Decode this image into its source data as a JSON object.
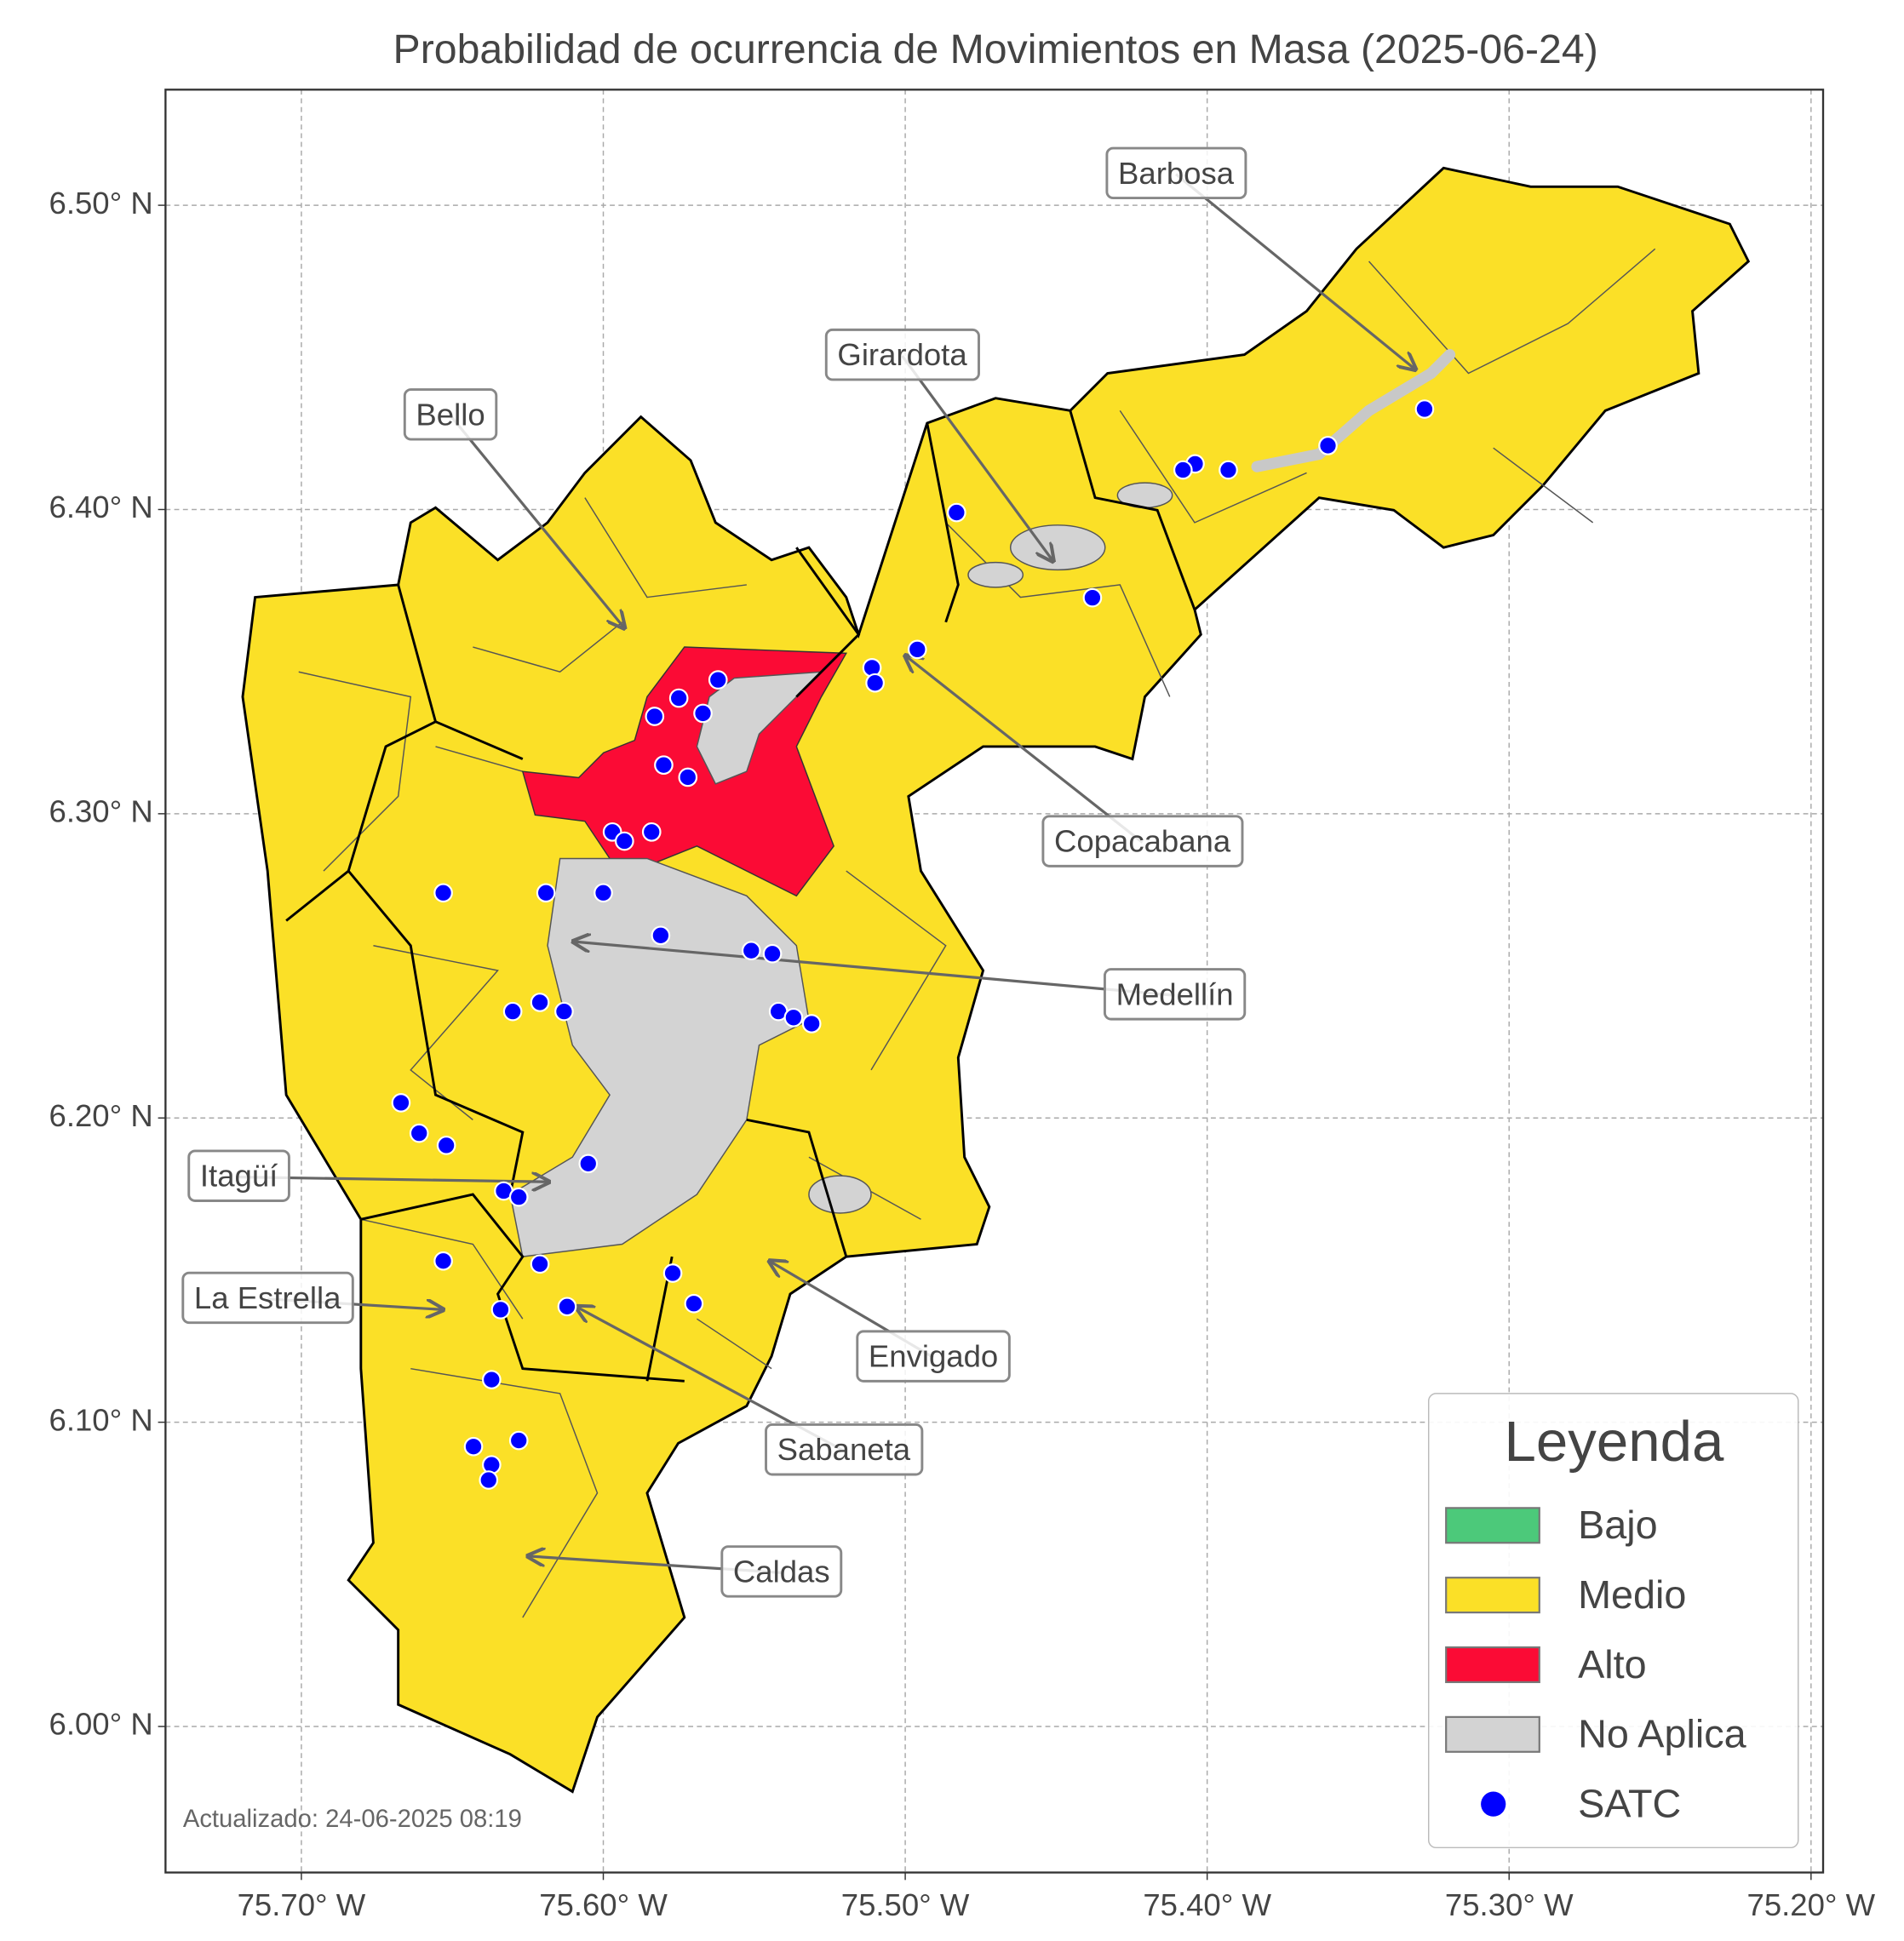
{
  "title": "Probabilidad de ocurrencia de Movimientos en Masa (2025-06-24)",
  "xlim": [
    -75.745,
    -75.196
  ],
  "ylim": [
    5.952,
    6.538
  ],
  "xticks": [
    {
      "value": -75.7,
      "label": "75.70° W"
    },
    {
      "value": -75.6,
      "label": "75.60° W"
    },
    {
      "value": -75.5,
      "label": "75.50° W"
    },
    {
      "value": -75.4,
      "label": "75.40° W"
    },
    {
      "value": -75.3,
      "label": "75.30° W"
    },
    {
      "value": -75.2,
      "label": "75.20° W"
    }
  ],
  "yticks": [
    {
      "value": 6.0,
      "label": "6.00° N"
    },
    {
      "value": 6.1,
      "label": "6.10° N"
    },
    {
      "value": 6.2,
      "label": "6.20° N"
    },
    {
      "value": 6.3,
      "label": "6.30° N"
    },
    {
      "value": 6.4,
      "label": "6.40° N"
    },
    {
      "value": 6.5,
      "label": "6.50° N"
    }
  ],
  "grid": true,
  "legend": {
    "title": "Leyenda",
    "entries": [
      {
        "name": "Bajo",
        "color": "#4cc97a"
      },
      {
        "name": "Medio",
        "color": "#fbe027"
      },
      {
        "name": "Alto",
        "color": "#fb0b35"
      },
      {
        "name": "No Aplica",
        "color": "#d3d3d3"
      }
    ]
  },
  "satc": {
    "name": "SATC",
    "color": "#0000ff",
    "lon": [
      -75.328,
      -75.36,
      -75.393,
      -75.404,
      -75.408,
      -75.483,
      -75.438,
      -75.496,
      -75.511,
      -75.51,
      -75.562,
      -75.567,
      -75.575,
      -75.583,
      -75.58,
      -75.572,
      -75.597,
      -75.593,
      -75.584,
      -75.653,
      -75.619,
      -75.6,
      -75.581,
      -75.551,
      -75.544,
      -75.542,
      -75.537,
      -75.531,
      -75.621,
      -75.63,
      -75.613,
      -75.667,
      -75.661,
      -75.652,
      -75.605,
      -75.633,
      -75.628,
      -75.653,
      -75.621,
      -75.577,
      -75.57,
      -75.634,
      -75.612,
      -75.637,
      -75.643,
      -75.628,
      -75.637,
      -75.638
    ],
    "lat": [
      6.433,
      6.421,
      6.413,
      6.415,
      6.413,
      6.399,
      6.371,
      6.354,
      6.348,
      6.343,
      6.344,
      6.333,
      6.338,
      6.332,
      6.316,
      6.312,
      6.294,
      6.291,
      6.294,
      6.274,
      6.274,
      6.274,
      6.26,
      6.255,
      6.254,
      6.235,
      6.233,
      6.231,
      6.238,
      6.235,
      6.235,
      6.205,
      6.195,
      6.191,
      6.185,
      6.176,
      6.174,
      6.153,
      6.152,
      6.149,
      6.139,
      6.137,
      6.138,
      6.114,
      6.092,
      6.094,
      6.086,
      6.081
    ]
  },
  "annotations": [
    {
      "label": "Barbosa",
      "lon": -75.331,
      "lat": 6.446
    },
    {
      "label": "Girardota",
      "lon": -75.451,
      "lat": 6.383
    },
    {
      "label": "Bello",
      "lon": -75.593,
      "lat": 6.361
    },
    {
      "label": "Copacabana",
      "lon": -75.5,
      "lat": 6.352
    },
    {
      "label": "Medellín",
      "lon": -75.61,
      "lat": 6.258
    },
    {
      "label": "Itagüí",
      "lon": -75.618,
      "lat": 6.179
    },
    {
      "label": "La Estrella",
      "lon": -75.653,
      "lat": 6.137
    },
    {
      "label": "Envigado",
      "lon": -75.545,
      "lat": 6.153
    },
    {
      "label": "Sabaneta",
      "lon": -75.609,
      "lat": 6.138
    },
    {
      "label": "Caldas",
      "lon": -75.625,
      "lat": 6.056
    }
  ],
  "footnote": "Actualizado: 24-06-2025 08:19"
}
